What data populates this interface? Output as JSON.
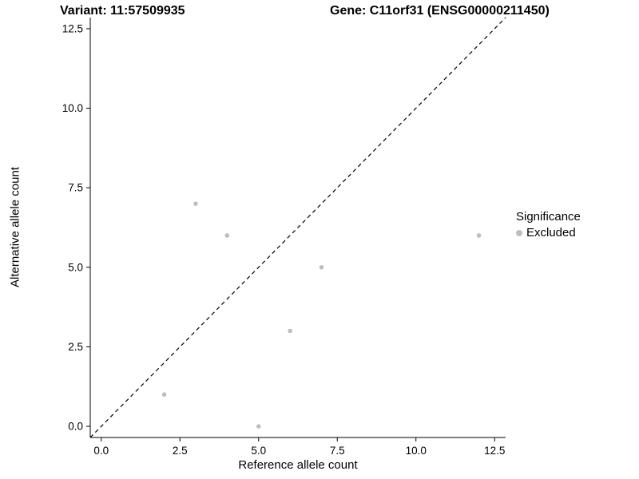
{
  "title": {
    "variant": "Variant: 11:57509935",
    "gene": "Gene: C11orf31 (ENSG00000211450)"
  },
  "chart_data": {
    "type": "scatter",
    "title": "Variant: 11:57509935   Gene: C11orf31 (ENSG00000211450)",
    "xlabel": "Reference allele count",
    "ylabel": "Alternative allele count",
    "xlim": [
      -0.35,
      12.85
    ],
    "ylim": [
      -0.35,
      12.85
    ],
    "xticks": [
      0,
      2.5,
      5,
      7.5,
      10,
      12.5
    ],
    "yticks": [
      0,
      2.5,
      5,
      7.5,
      10,
      12.5
    ],
    "grid": false,
    "identity_line": {
      "equation": "y = x",
      "style": "dashed",
      "color": "#000000"
    },
    "series": [
      {
        "name": "Excluded",
        "color": "#bebebe",
        "points": [
          [
            2,
            1
          ],
          [
            3,
            7
          ],
          [
            4,
            6
          ],
          [
            5,
            0
          ],
          [
            6,
            3
          ],
          [
            7,
            5
          ],
          [
            12,
            6
          ]
        ]
      }
    ],
    "legend": {
      "title": "Significance",
      "position": "right",
      "entries": [
        {
          "label": "Excluded",
          "color": "#bebebe"
        }
      ]
    }
  }
}
